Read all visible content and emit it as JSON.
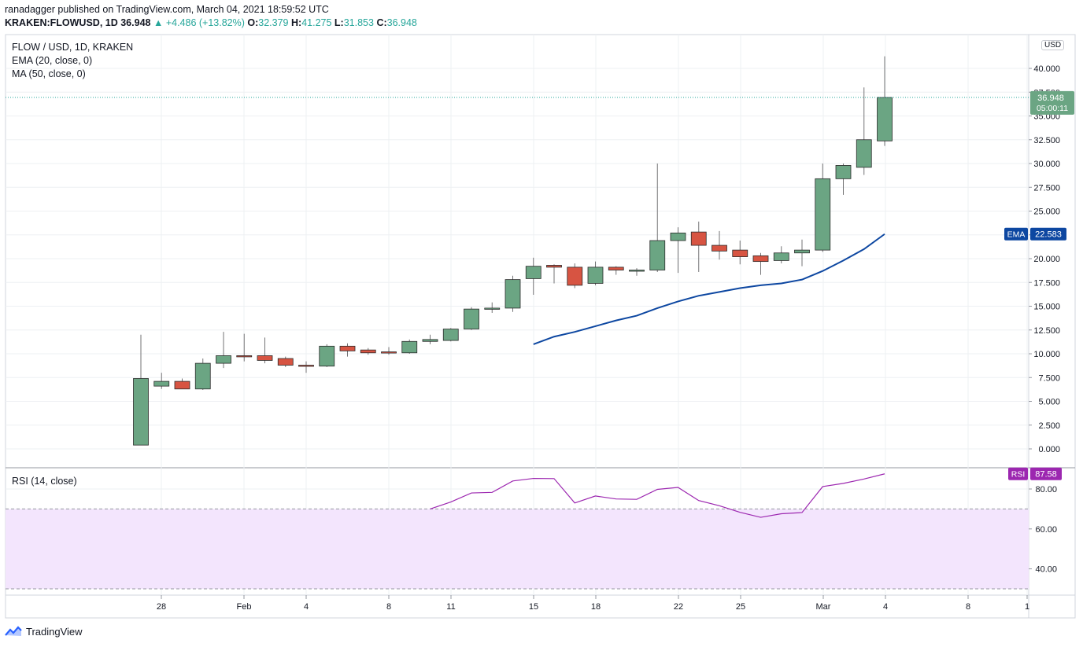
{
  "header": {
    "publisher_line": "ranadagger published on TradingView.com, March 04, 2021 18:59:52 UTC",
    "symbol": "KRAKEN:FLOWUSD, 1D",
    "price_now": "36.948",
    "change": "+4.486 (+13.82%)",
    "o_label": "O:",
    "o_val": "32.379",
    "h_label": "H:",
    "h_val": "41.275",
    "l_label": "L:",
    "l_val": "31.853",
    "c_label": "C:",
    "c_val": "36.948"
  },
  "legend": {
    "title": "FLOW / USD, 1D, KRAKEN",
    "ema": "EMA (20, close, 0)",
    "ma": "MA (50, close, 0)",
    "rsi": "RSI (14, close)"
  },
  "tags": {
    "currency": "USD",
    "last_price": "36.948",
    "countdown": "05:00:11",
    "ema_label": "EMA",
    "ema_value": "22.583",
    "rsi_label": "RSI",
    "rsi_value": "87.58"
  },
  "brand": {
    "name": "TradingView"
  },
  "colors": {
    "up": "#6ba583",
    "down": "#d75442",
    "wick": "#737375",
    "ema": "#0d47a1",
    "rsi": "#9c27b0",
    "rsi_band": "#f3e5fd",
    "grid": "#eef0f3"
  },
  "chart_data": [
    {
      "type": "candlestick",
      "title": "FLOW / USD, 1D, KRAKEN",
      "x_tick_labels": [
        "28",
        "Feb",
        "4",
        "8",
        "11",
        "15",
        "18",
        "22",
        "25",
        "Mar",
        "4",
        "8",
        "1"
      ],
      "y_ticks": [
        0,
        2.5,
        5,
        7.5,
        10,
        12.5,
        15,
        17.5,
        20,
        22.5,
        25,
        27.5,
        30,
        32.5,
        35,
        37.5,
        40
      ],
      "y_tick_labels": [
        "0.000",
        "2.500",
        "5.000",
        "7.500",
        "10.000",
        "12.500",
        "15.000",
        "17.500",
        "20.000",
        "22.500",
        "25.000",
        "27.500",
        "30.000",
        "32.500",
        "35.000",
        "37.500",
        "40.000"
      ],
      "ylim": [
        -2,
        43
      ],
      "series": [
        {
          "name": "FLOW / USD",
          "dates": [
            "2021-01-27",
            "2021-01-28",
            "2021-01-29",
            "2021-01-30",
            "2021-01-31",
            "2021-02-01",
            "2021-02-02",
            "2021-02-03",
            "2021-02-04",
            "2021-02-05",
            "2021-02-06",
            "2021-02-07",
            "2021-02-08",
            "2021-02-09",
            "2021-02-10",
            "2021-02-11",
            "2021-02-12",
            "2021-02-13",
            "2021-02-14",
            "2021-02-15",
            "2021-02-16",
            "2021-02-17",
            "2021-02-18",
            "2021-02-19",
            "2021-02-20",
            "2021-02-21",
            "2021-02-22",
            "2021-02-23",
            "2021-02-24",
            "2021-02-25",
            "2021-02-26",
            "2021-02-27",
            "2021-02-28",
            "2021-03-01",
            "2021-03-02",
            "2021-03-03",
            "2021-03-04"
          ],
          "ohlc": [
            [
              0.4,
              12.0,
              0.4,
              7.4
            ],
            [
              6.6,
              8.0,
              6.3,
              7.1
            ],
            [
              7.1,
              7.4,
              6.3,
              6.3
            ],
            [
              6.3,
              9.5,
              6.2,
              9.0
            ],
            [
              9.0,
              12.3,
              8.5,
              9.8
            ],
            [
              9.8,
              12.1,
              9.2,
              9.7
            ],
            [
              9.8,
              11.7,
              9.0,
              9.3
            ],
            [
              9.5,
              9.7,
              8.6,
              8.8
            ],
            [
              8.8,
              9.2,
              8.0,
              8.7
            ],
            [
              8.7,
              11.0,
              8.6,
              10.8
            ],
            [
              10.8,
              11.1,
              9.7,
              10.3
            ],
            [
              10.4,
              10.6,
              9.9,
              10.1
            ],
            [
              10.2,
              10.7,
              9.9,
              10.1
            ],
            [
              10.1,
              11.5,
              10.0,
              11.3
            ],
            [
              11.3,
              12.0,
              11.0,
              11.5
            ],
            [
              11.4,
              12.7,
              11.3,
              12.6
            ],
            [
              12.6,
              14.9,
              12.5,
              14.7
            ],
            [
              14.7,
              15.4,
              14.3,
              14.8
            ],
            [
              14.8,
              18.2,
              14.4,
              17.8
            ],
            [
              17.9,
              20.1,
              16.2,
              19.2
            ],
            [
              19.3,
              19.4,
              17.4,
              19.1
            ],
            [
              19.1,
              19.5,
              16.9,
              17.2
            ],
            [
              17.4,
              19.7,
              17.2,
              19.1
            ],
            [
              19.1,
              19.2,
              18.3,
              18.8
            ],
            [
              18.8,
              19.0,
              18.2,
              18.8
            ],
            [
              18.8,
              30.0,
              18.6,
              21.9
            ],
            [
              21.9,
              23.3,
              18.5,
              22.7
            ],
            [
              22.8,
              23.9,
              18.6,
              21.4
            ],
            [
              21.4,
              22.9,
              19.9,
              20.8
            ],
            [
              20.9,
              21.9,
              19.4,
              20.2
            ],
            [
              20.3,
              20.6,
              18.3,
              19.7
            ],
            [
              19.8,
              21.3,
              19.5,
              20.6
            ],
            [
              20.6,
              22.0,
              19.2,
              20.9
            ],
            [
              20.9,
              30.0,
              20.7,
              28.4
            ],
            [
              28.4,
              30.0,
              26.7,
              29.8
            ],
            [
              29.6,
              38.0,
              28.8,
              32.5
            ],
            [
              32.379,
              41.275,
              31.853,
              36.948
            ]
          ]
        },
        {
          "name": "EMA (20, close, 0)",
          "start_index": 19,
          "values": [
            11.0,
            11.8,
            12.3,
            12.9,
            13.5,
            14.0,
            14.8,
            15.5,
            16.1,
            16.5,
            16.9,
            17.2,
            17.4,
            17.8,
            18.7,
            19.8,
            21.0,
            22.583
          ]
        }
      ],
      "last_price": 36.948,
      "ema_last": 22.583
    },
    {
      "type": "line",
      "title": "RSI (14, close)",
      "y_ticks": [
        40,
        60,
        80
      ],
      "y_tick_labels": [
        "40.00",
        "60.00",
        "80.00"
      ],
      "ylim": [
        30,
        92
      ],
      "band": [
        30,
        70
      ],
      "series": [
        {
          "name": "RSI (14, close)",
          "start_index": 14,
          "values": [
            70.0,
            73.5,
            78.0,
            78.3,
            84.0,
            85.3,
            85.2,
            73.0,
            76.5,
            75.0,
            74.8,
            79.8,
            80.8,
            74.2,
            71.6,
            68.3,
            65.8,
            67.6,
            68.2,
            81.2,
            82.8,
            85.0,
            87.58
          ]
        }
      ],
      "last_value": 87.58
    }
  ]
}
